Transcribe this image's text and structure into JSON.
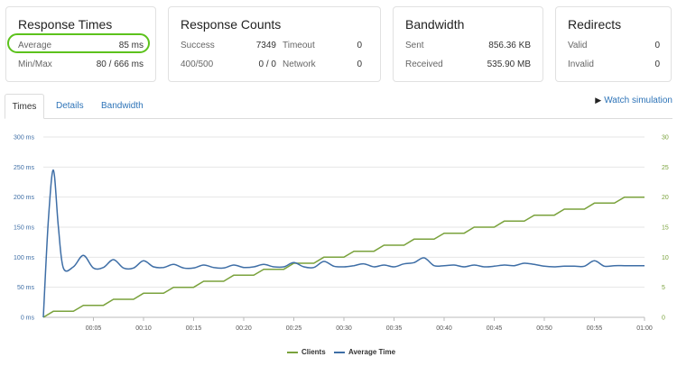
{
  "cards": {
    "response_times": {
      "title": "Response Times",
      "average_label": "Average",
      "average_value": "85 ms",
      "minmax_label": "Min/Max",
      "minmax_value": "80 / 666 ms"
    },
    "response_counts": {
      "title": "Response Counts",
      "success_label": "Success",
      "success_value": "7349",
      "timeout_label": "Timeout",
      "timeout_value": "0",
      "error_label": "400/500",
      "error_value": "0 / 0",
      "network_label": "Network",
      "network_value": "0"
    },
    "bandwidth": {
      "title": "Bandwidth",
      "sent_label": "Sent",
      "sent_value": "856.36 KB",
      "received_label": "Received",
      "received_value": "535.90 MB"
    },
    "redirects": {
      "title": "Redirects",
      "valid_label": "Valid",
      "valid_value": "0",
      "invalid_label": "Invalid",
      "invalid_value": "0"
    }
  },
  "tabs": [
    {
      "label": "Times",
      "active": true
    },
    {
      "label": "Details",
      "active": false
    },
    {
      "label": "Bandwidth",
      "active": false
    }
  ],
  "watch_simulation": {
    "label": "Watch simulation",
    "icon": "play-icon"
  },
  "colors": {
    "clients": "#7aa23c",
    "average_time": "#3e6ea6",
    "accent": "#5cc21c",
    "link": "#2e74b8"
  },
  "chart_data": {
    "type": "line",
    "x_ticks": [
      "00:05",
      "00:10",
      "00:15",
      "00:20",
      "00:25",
      "00:30",
      "00:35",
      "00:40",
      "00:45",
      "00:50",
      "00:55",
      "01:00"
    ],
    "y_left_ticks": [
      "0 ms",
      "50 ms",
      "100 ms",
      "150 ms",
      "200 ms",
      "250 ms",
      "300 ms"
    ],
    "y_right_ticks": [
      "0",
      "5",
      "10",
      "15",
      "20",
      "25",
      "30"
    ],
    "ylim_left": [
      0,
      300
    ],
    "ylim_right": [
      0,
      30
    ],
    "xlim_seconds": [
      0,
      60
    ],
    "grid": true,
    "legend_position": "bottom-center",
    "series": [
      {
        "name": "Clients",
        "axis": "right",
        "points": [
          [
            0,
            0
          ],
          [
            1,
            1
          ],
          [
            3,
            1
          ],
          [
            4,
            2
          ],
          [
            6,
            2
          ],
          [
            7,
            3
          ],
          [
            9,
            3
          ],
          [
            10,
            4
          ],
          [
            12,
            4
          ],
          [
            13,
            5
          ],
          [
            15,
            5
          ],
          [
            16,
            6
          ],
          [
            18,
            6
          ],
          [
            19,
            7
          ],
          [
            21,
            7
          ],
          [
            22,
            8
          ],
          [
            24,
            8
          ],
          [
            25,
            9
          ],
          [
            27,
            9
          ],
          [
            28,
            10
          ],
          [
            30,
            10
          ],
          [
            31,
            11
          ],
          [
            33,
            11
          ],
          [
            34,
            12
          ],
          [
            36,
            12
          ],
          [
            37,
            13
          ],
          [
            39,
            13
          ],
          [
            40,
            14
          ],
          [
            42,
            14
          ],
          [
            43,
            15
          ],
          [
            45,
            15
          ],
          [
            46,
            16
          ],
          [
            48,
            16
          ],
          [
            49,
            17
          ],
          [
            51,
            17
          ],
          [
            52,
            18
          ],
          [
            54,
            18
          ],
          [
            55,
            19
          ],
          [
            57,
            19
          ],
          [
            58,
            20
          ],
          [
            60,
            20
          ]
        ]
      },
      {
        "name": "Average Time",
        "axis": "left",
        "points": [
          [
            0,
            0
          ],
          [
            0.5,
            160
          ],
          [
            1,
            245
          ],
          [
            1.5,
            150
          ],
          [
            2,
            82
          ],
          [
            3,
            84
          ],
          [
            4,
            103
          ],
          [
            5,
            82
          ],
          [
            6,
            83
          ],
          [
            7,
            96
          ],
          [
            8,
            82
          ],
          [
            9,
            82
          ],
          [
            10,
            94
          ],
          [
            11,
            84
          ],
          [
            12,
            83
          ],
          [
            13,
            88
          ],
          [
            14,
            82
          ],
          [
            15,
            82
          ],
          [
            16,
            87
          ],
          [
            17,
            83
          ],
          [
            18,
            82
          ],
          [
            19,
            87
          ],
          [
            20,
            83
          ],
          [
            21,
            84
          ],
          [
            22,
            88
          ],
          [
            23,
            84
          ],
          [
            24,
            84
          ],
          [
            25,
            91
          ],
          [
            26,
            84
          ],
          [
            27,
            83
          ],
          [
            28,
            93
          ],
          [
            29,
            85
          ],
          [
            30,
            84
          ],
          [
            31,
            86
          ],
          [
            32,
            89
          ],
          [
            33,
            84
          ],
          [
            34,
            87
          ],
          [
            35,
            84
          ],
          [
            36,
            89
          ],
          [
            37,
            91
          ],
          [
            38,
            99
          ],
          [
            39,
            86
          ],
          [
            40,
            86
          ],
          [
            41,
            87
          ],
          [
            42,
            84
          ],
          [
            43,
            87
          ],
          [
            44,
            84
          ],
          [
            45,
            85
          ],
          [
            46,
            87
          ],
          [
            47,
            86
          ],
          [
            48,
            90
          ],
          [
            49,
            88
          ],
          [
            50,
            85
          ],
          [
            51,
            84
          ],
          [
            52,
            85
          ],
          [
            53,
            85
          ],
          [
            54,
            85
          ],
          [
            55,
            94
          ],
          [
            56,
            85
          ],
          [
            57,
            86
          ],
          [
            58,
            86
          ],
          [
            59,
            86
          ],
          [
            60,
            86
          ]
        ]
      }
    ]
  }
}
